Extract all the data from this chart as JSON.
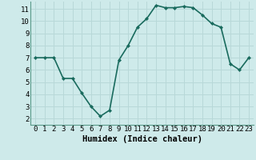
{
  "x": [
    0,
    1,
    2,
    3,
    4,
    5,
    6,
    7,
    8,
    9,
    10,
    11,
    12,
    13,
    14,
    15,
    16,
    17,
    18,
    19,
    20,
    21,
    22,
    23
  ],
  "y": [
    7,
    7,
    7,
    5.3,
    5.3,
    4.1,
    3.0,
    2.2,
    2.7,
    6.8,
    8.0,
    9.5,
    10.2,
    11.3,
    11.1,
    11.1,
    11.2,
    11.1,
    10.5,
    9.8,
    9.5,
    6.5,
    6.0,
    7.0
  ],
  "line_color": "#1a6b5e",
  "marker": "D",
  "marker_size": 2.0,
  "bg_color": "#ceeaea",
  "grid_major_color": "#b8d8d8",
  "grid_minor_color": "#cde8e8",
  "xlabel": "Humidex (Indice chaleur)",
  "xlim": [
    -0.5,
    23.5
  ],
  "ylim": [
    1.5,
    11.6
  ],
  "yticks": [
    2,
    3,
    4,
    5,
    6,
    7,
    8,
    9,
    10,
    11
  ],
  "xticks": [
    0,
    1,
    2,
    3,
    4,
    5,
    6,
    7,
    8,
    9,
    10,
    11,
    12,
    13,
    14,
    15,
    16,
    17,
    18,
    19,
    20,
    21,
    22,
    23
  ],
  "tick_fontsize": 6.5,
  "label_fontsize": 7.5,
  "linewidth": 1.2
}
